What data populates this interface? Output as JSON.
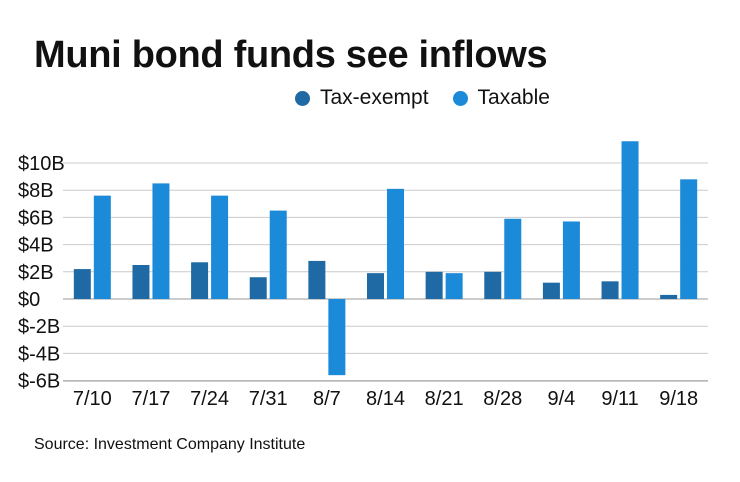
{
  "title": "Muni bond funds see inflows",
  "source": "Source: Investment Company Institute",
  "colors": {
    "tax_exempt": "#1f6aa5",
    "taxable": "#1b8ad8",
    "grid": "#cccccc",
    "axis": "#999999"
  },
  "legend": [
    {
      "label": "Tax-exempt"
    },
    {
      "label": "Taxable"
    }
  ],
  "chart_data": {
    "type": "bar",
    "title": "Muni bond funds see inflows",
    "xlabel": "",
    "ylabel": "",
    "categories": [
      "7/10",
      "7/17",
      "7/24",
      "7/31",
      "8/7",
      "8/14",
      "8/21",
      "8/28",
      "9/4",
      "9/11",
      "9/18"
    ],
    "series": [
      {
        "name": "Tax-exempt",
        "values": [
          2.2,
          2.5,
          2.7,
          1.6,
          2.8,
          1.9,
          2.0,
          2.0,
          1.2,
          1.3,
          0.3
        ]
      },
      {
        "name": "Taxable",
        "values": [
          7.6,
          8.5,
          7.6,
          6.5,
          -5.6,
          8.1,
          1.9,
          5.9,
          5.7,
          11.6,
          8.8
        ]
      }
    ],
    "yticks": [
      10,
      8,
      6,
      4,
      2,
      0,
      -2,
      -4,
      -6
    ],
    "ytick_labels": [
      "$10B",
      "$8B",
      "$6B",
      "$4B",
      "$2B",
      "$0",
      "$-2B",
      "$-4B",
      "$-6B"
    ],
    "ylim": [
      -6,
      12
    ],
    "grid": true,
    "legend_position": "top-right"
  }
}
